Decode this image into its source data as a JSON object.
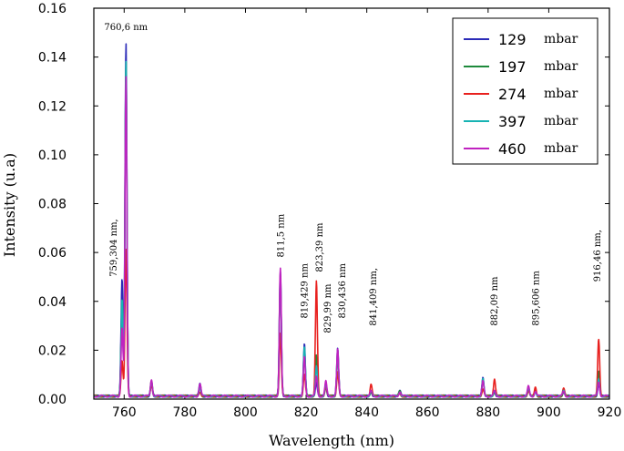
{
  "chart_data": {
    "type": "line",
    "xlabel": "Wavelength (nm)",
    "ylabel": "Intensity (u.a)",
    "xlim": [
      750,
      920
    ],
    "ylim": [
      0,
      0.16
    ],
    "xticks": [
      760,
      780,
      800,
      820,
      840,
      860,
      880,
      900,
      920
    ],
    "yticks": [
      "0.00",
      "0.02",
      "0.04",
      "0.06",
      "0.08",
      "0.10",
      "0.12",
      "0.14",
      "0.16"
    ],
    "legend_position": "top-right",
    "legend_unit": "mbar",
    "series": [
      {
        "name": "129",
        "color": "#2b2bb8",
        "peaks": [
          [
            759.3,
            0.048
          ],
          [
            760.6,
            0.145
          ],
          [
            769.0,
            0.005
          ],
          [
            785.0,
            0.005
          ],
          [
            811.5,
            0.051
          ],
          [
            819.43,
            0.022
          ],
          [
            823.39,
            0.006
          ],
          [
            826.5,
            0.004
          ],
          [
            830.4,
            0.02
          ],
          [
            841.4,
            0.002
          ],
          [
            850.9,
            0.002
          ],
          [
            878.3,
            0.008
          ],
          [
            882.1,
            0.002
          ],
          [
            893.3,
            0.004
          ],
          [
            895.6,
            0.002
          ],
          [
            904.9,
            0.002
          ],
          [
            916.46,
            0.005
          ]
        ]
      },
      {
        "name": "197",
        "color": "#1e8a3c",
        "peaks": [
          [
            759.3,
            0.04
          ],
          [
            760.6,
            0.137
          ],
          [
            769.0,
            0.006
          ],
          [
            785.0,
            0.004
          ],
          [
            811.5,
            0.049
          ],
          [
            819.43,
            0.019
          ],
          [
            823.39,
            0.017
          ],
          [
            826.5,
            0.005
          ],
          [
            830.4,
            0.017
          ],
          [
            841.4,
            0.002
          ],
          [
            850.9,
            0.002
          ],
          [
            878.3,
            0.007
          ],
          [
            882.1,
            0.002
          ],
          [
            893.3,
            0.003
          ],
          [
            895.6,
            0.002
          ],
          [
            904.9,
            0.002
          ],
          [
            916.46,
            0.01
          ]
        ]
      },
      {
        "name": "274",
        "color": "#e8201e",
        "peaks": [
          [
            759.3,
            0.015
          ],
          [
            760.6,
            0.06
          ],
          [
            769.0,
            0.004
          ],
          [
            785.0,
            0.002
          ],
          [
            811.5,
            0.026
          ],
          [
            819.43,
            0.009
          ],
          [
            823.39,
            0.047
          ],
          [
            826.5,
            0.004
          ],
          [
            830.4,
            0.01
          ],
          [
            841.4,
            0.005
          ],
          [
            850.9,
            0.001
          ],
          [
            878.3,
            0.003
          ],
          [
            882.1,
            0.007
          ],
          [
            893.3,
            0.002
          ],
          [
            895.6,
            0.004
          ],
          [
            904.9,
            0.003
          ],
          [
            916.46,
            0.023
          ]
        ]
      },
      {
        "name": "397",
        "color": "#17b3b3",
        "peaks": [
          [
            759.3,
            0.04
          ],
          [
            760.6,
            0.137
          ],
          [
            769.0,
            0.006
          ],
          [
            785.0,
            0.004
          ],
          [
            811.5,
            0.05
          ],
          [
            819.43,
            0.02
          ],
          [
            823.39,
            0.012
          ],
          [
            826.5,
            0.005
          ],
          [
            830.4,
            0.018
          ],
          [
            841.4,
            0.002
          ],
          [
            850.9,
            0.002
          ],
          [
            878.3,
            0.007
          ],
          [
            882.1,
            0.002
          ],
          [
            893.3,
            0.003
          ],
          [
            895.6,
            0.002
          ],
          [
            904.9,
            0.002
          ],
          [
            916.46,
            0.007
          ]
        ]
      },
      {
        "name": "460",
        "color": "#c022c0",
        "peaks": [
          [
            759.3,
            0.028
          ],
          [
            760.6,
            0.131
          ],
          [
            769.0,
            0.007
          ],
          [
            785.0,
            0.005
          ],
          [
            811.5,
            0.052
          ],
          [
            819.43,
            0.016
          ],
          [
            823.39,
            0.008
          ],
          [
            826.5,
            0.006
          ],
          [
            830.4,
            0.019
          ],
          [
            841.4,
            0.002
          ],
          [
            850.9,
            0.002
          ],
          [
            878.3,
            0.006
          ],
          [
            882.1,
            0.002
          ],
          [
            893.3,
            0.004
          ],
          [
            895.6,
            0.002
          ],
          [
            904.9,
            0.002
          ],
          [
            916.46,
            0.006
          ]
        ]
      }
    ],
    "annotations": [
      {
        "text": "760,6 nm",
        "x": 760.6,
        "y": 0.151,
        "rotate": false
      },
      {
        "text": "759,304 nm,",
        "x": 756.5,
        "y": 0.05,
        "rotate": true
      },
      {
        "text": "811,5 nm",
        "x": 811.5,
        "y": 0.058,
        "rotate": true
      },
      {
        "text": "819,429 nm",
        "x": 819.4,
        "y": 0.033,
        "rotate": true
      },
      {
        "text": "823,39 nm",
        "x": 824.3,
        "y": 0.052,
        "rotate": true
      },
      {
        "text": "829,99 nm",
        "x": 827.0,
        "y": 0.027,
        "rotate": true
      },
      {
        "text": "830,436 nm",
        "x": 831.8,
        "y": 0.033,
        "rotate": true
      },
      {
        "text": "841,409 nm,",
        "x": 842.0,
        "y": 0.03,
        "rotate": true
      },
      {
        "text": "882,09 nm",
        "x": 882.0,
        "y": 0.03,
        "rotate": true
      },
      {
        "text": "895,606 nm",
        "x": 895.6,
        "y": 0.03,
        "rotate": true
      },
      {
        "text": "916,46 nm,",
        "x": 916.0,
        "y": 0.048,
        "rotate": true
      }
    ]
  }
}
